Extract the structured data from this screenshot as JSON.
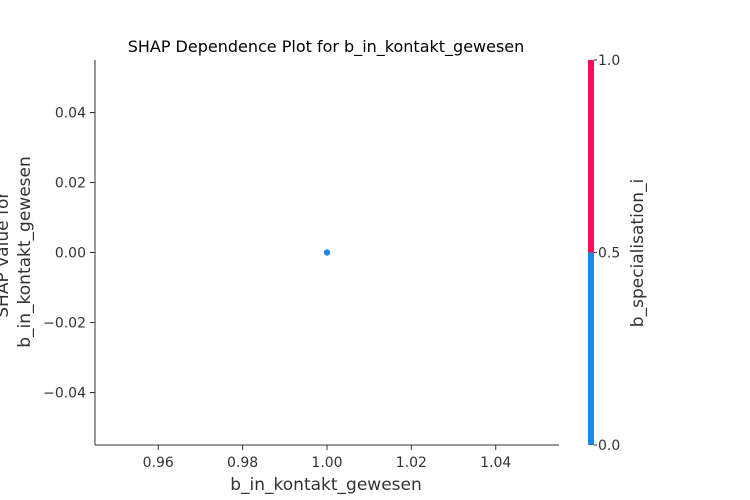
{
  "chart_data": {
    "type": "scatter",
    "title": "SHAP Dependence Plot for b_in_kontakt_gewesen",
    "xlabel": "b_in_kontakt_gewesen",
    "ylabel_lines": [
      "SHAP value for",
      "b_in_kontakt_gewesen"
    ],
    "xlim": [
      0.945,
      1.055
    ],
    "ylim": [
      -0.055,
      0.055
    ],
    "x_ticks": [
      0.96,
      0.98,
      1.0,
      1.02,
      1.04
    ],
    "x_tick_labels": [
      "0.96",
      "0.98",
      "1.00",
      "1.02",
      "1.04"
    ],
    "y_ticks": [
      0.04,
      0.02,
      0.0,
      -0.02,
      -0.04
    ],
    "y_tick_labels": [
      "0.04",
      "0.02",
      "0.00",
      "−0.02",
      "−0.04"
    ],
    "points": [
      {
        "x": 1.0,
        "y": 0.0,
        "color_value": 0.0
      }
    ],
    "colorbar": {
      "label": "b_specialisation_i",
      "range": [
        0.0,
        1.0
      ],
      "ticks": [
        0.0,
        0.5,
        1.0
      ],
      "tick_labels": [
        "0.0",
        "0.5",
        "1.0"
      ],
      "segments": [
        {
          "from": 0.0,
          "to": 0.5,
          "color": "#1e88e5"
        },
        {
          "from": 0.5,
          "to": 1.0,
          "color": "#ff0d57"
        }
      ]
    },
    "grid": false,
    "legend": "none"
  }
}
